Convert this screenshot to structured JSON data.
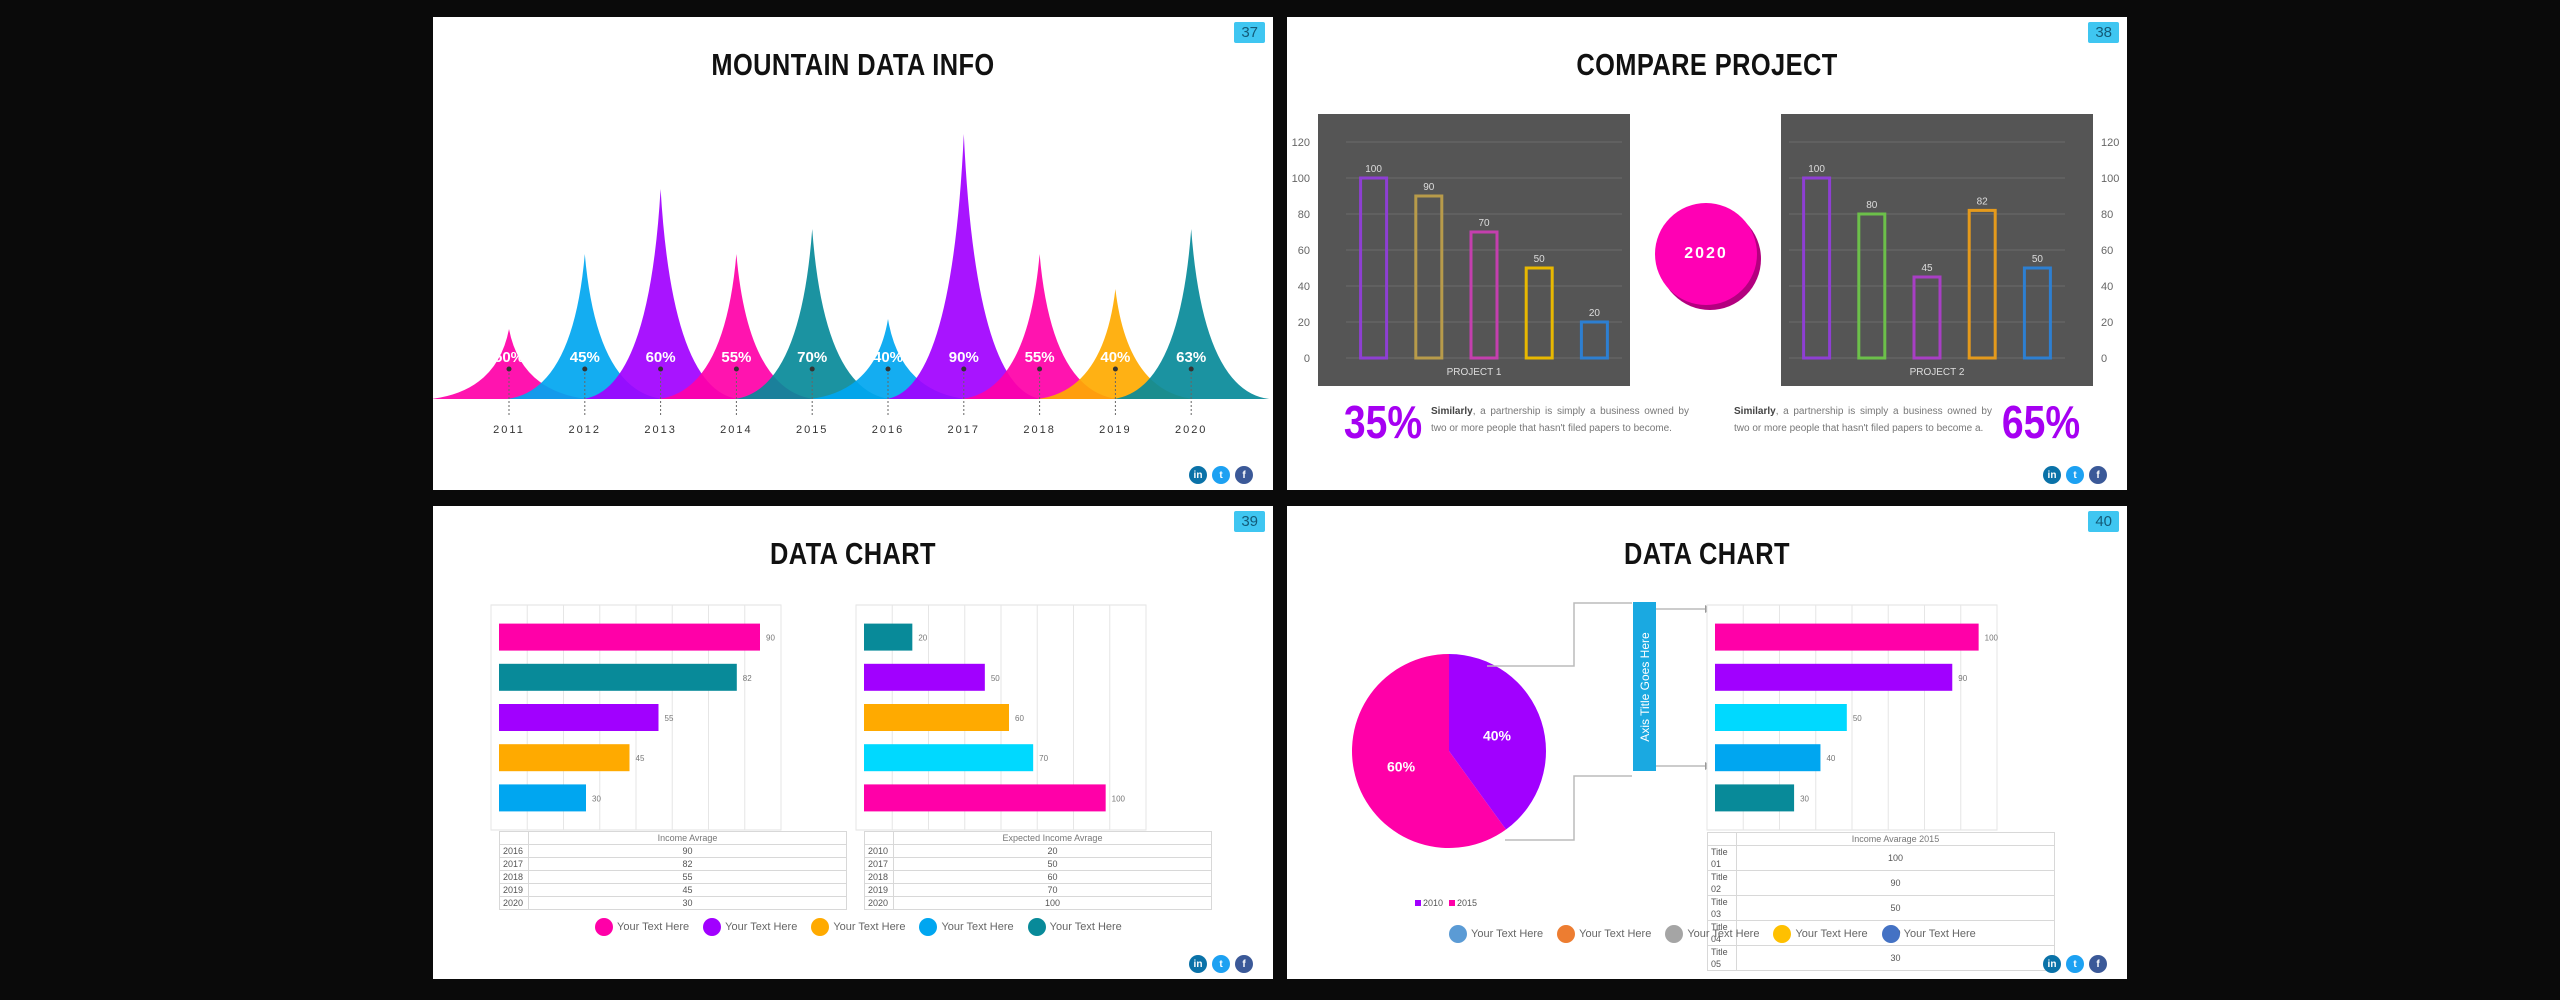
{
  "slides": [
    {
      "number": "37",
      "title": "MOUNTAIN DATA INFO",
      "chart_data": {
        "type": "area",
        "categories": [
          "2011",
          "2012",
          "2013",
          "2014",
          "2015",
          "2016",
          "2017",
          "2018",
          "2019",
          "2020"
        ],
        "values": [
          50,
          45,
          60,
          55,
          70,
          40,
          90,
          55,
          40,
          63
        ],
        "labels": [
          "50%",
          "45%",
          "60%",
          "55%",
          "70%",
          "40%",
          "90%",
          "55%",
          "40%",
          "63%"
        ],
        "peak_heights": [
          70,
          145,
          210,
          145,
          170,
          80,
          265,
          145,
          110,
          170
        ],
        "colors": [
          "#ff00a8",
          "#00a6f0",
          "#a100ff",
          "#ff00a8",
          "#088a99",
          "#00a6f0",
          "#a100ff",
          "#ff00a8",
          "#ffaa00",
          "#088a99"
        ]
      }
    },
    {
      "number": "38",
      "title": "COMPARE PROJECT",
      "center_badge": "2020",
      "left": {
        "percent": "35%",
        "text_bold": "Similarly",
        "text": ", a partnership is simply a business owned by two or more people that hasn't filed papers to become."
      },
      "right": {
        "percent": "65%",
        "text_bold": "Similarly",
        "text": ", a partnership is simply a business owned by two or more people that hasn't filed papers to become a."
      },
      "chart_data": [
        {
          "type": "bar",
          "xlabel": "PROJECT 1",
          "values": [
            100,
            90,
            70,
            50,
            20
          ],
          "colors": [
            "#8e3fd3",
            "#b89b4a",
            "#c43fae",
            "#e8b800",
            "#2d7fd1"
          ],
          "ylim": [
            0,
            120
          ],
          "yticks": [
            "0",
            "20",
            "40",
            "60",
            "80",
            "100",
            "120"
          ],
          "axis_side": "left"
        },
        {
          "type": "bar",
          "xlabel": "PROJECT 2",
          "values": [
            100,
            80,
            45,
            82,
            50
          ],
          "colors": [
            "#8e3fd3",
            "#6cc04a",
            "#a83fc4",
            "#e59a1c",
            "#2d7fd1"
          ],
          "ylim": [
            0,
            120
          ],
          "yticks": [
            "0",
            "20",
            "40",
            "60",
            "80",
            "100",
            "120"
          ],
          "axis_side": "right"
        }
      ]
    },
    {
      "number": "39",
      "title": "DATA CHART",
      "chart_data": [
        {
          "type": "bar",
          "orientation": "horizontal",
          "table_header": "Income Avrage",
          "categories": [
            "2016",
            "2017",
            "2018",
            "2019",
            "2020"
          ],
          "values": [
            90,
            82,
            55,
            45,
            30
          ],
          "colors": [
            "#ff00a8",
            "#088a99",
            "#a100ff",
            "#ffaa00",
            "#00a6f0"
          ],
          "xlim": [
            0,
            100
          ]
        },
        {
          "type": "bar",
          "orientation": "horizontal",
          "table_header": "Expected Income Avrage",
          "categories": [
            "2010",
            "2017",
            "2018",
            "2019",
            "2020"
          ],
          "values": [
            20,
            50,
            60,
            70,
            100
          ],
          "colors": [
            "#088a99",
            "#a100ff",
            "#ffaa00",
            "#00d9ff",
            "#ff00a8"
          ],
          "xlim": [
            0,
            120
          ]
        }
      ],
      "legend": [
        {
          "label": "Your Text Here",
          "color": "#ff00a8"
        },
        {
          "label": "Your Text Here",
          "color": "#a100ff"
        },
        {
          "label": "Your Text Here",
          "color": "#ffaa00"
        },
        {
          "label": "Your Text Here",
          "color": "#00a6f0"
        },
        {
          "label": "Your Text Here",
          "color": "#088a99"
        }
      ]
    },
    {
      "number": "40",
      "title": "DATA CHART",
      "axis_title": "Axis Title Goes Here",
      "pie_legend": [
        {
          "label": "2010",
          "color": "#a100ff"
        },
        {
          "label": "2015",
          "color": "#ff00a8"
        }
      ],
      "chart_data": [
        {
          "type": "pie",
          "labels": [
            "60%",
            "40%"
          ],
          "values": [
            60,
            40
          ],
          "colors": [
            "#ff00a8",
            "#a100ff"
          ]
        },
        {
          "type": "bar",
          "orientation": "horizontal",
          "table_header": "Income Avarage 2015",
          "categories": [
            "Title 01",
            "Title 02",
            "Title 03",
            "Title 04",
            "Title 05"
          ],
          "values": [
            100,
            90,
            50,
            40,
            30
          ],
          "colors": [
            "#ff00a8",
            "#a100ff",
            "#00d9ff",
            "#00a6f0",
            "#088a99"
          ],
          "xlim": [
            0,
            110
          ]
        }
      ],
      "legend": [
        {
          "label": "Your Text Here",
          "color": "#5b9bd5"
        },
        {
          "label": "Your Text Here",
          "color": "#ed7d31"
        },
        {
          "label": "Your Text Here",
          "color": "#a5a5a5"
        },
        {
          "label": "Your Text Here",
          "color": "#ffc000"
        },
        {
          "label": "Your Text Here",
          "color": "#4472c4"
        }
      ]
    }
  ],
  "social_icons": [
    "linkedin-icon",
    "twitter-icon",
    "facebook-icon"
  ],
  "social_glyphs": {
    "linkedin": "in",
    "twitter": "t",
    "facebook": "f"
  }
}
